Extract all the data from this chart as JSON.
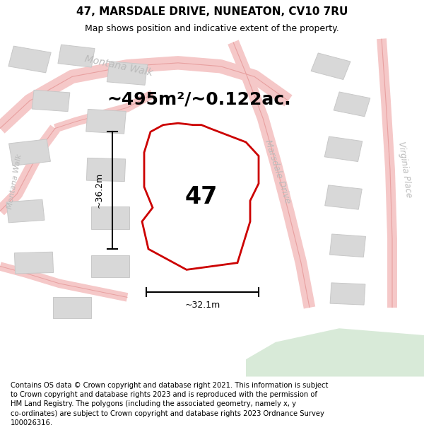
{
  "title": "47, MARSDALE DRIVE, NUNEATON, CV10 7RU",
  "subtitle": "Map shows position and indicative extent of the property.",
  "area_text": "~495m²/~0.122ac.",
  "plot_number": "47",
  "width_label": "~32.1m",
  "height_label": "~36.2m",
  "footer_text": "Contains OS data © Crown copyright and database right 2021. This information is subject to Crown copyright and database rights 2023 and is reproduced with the permission of HM Land Registry. The polygons (including the associated geometry, namely x, y co-ordinates) are subject to Crown copyright and database rights 2023 Ordnance Survey 100026316.",
  "map_bg": "#f2f2f0",
  "plot_fill": "#ffffff",
  "plot_outline": "#cc0000",
  "road_color": "#f5c8c8",
  "road_line": "#e8a0a0",
  "building_color": "#d8d8d8",
  "building_edge": "#c8c8c8",
  "street_label_color": "#bbbbbb",
  "green_area": "#d8ead8",
  "title_fontsize": 11,
  "subtitle_fontsize": 9,
  "area_fontsize": 18,
  "plot_fontsize": 24,
  "footer_fontsize": 7.2
}
